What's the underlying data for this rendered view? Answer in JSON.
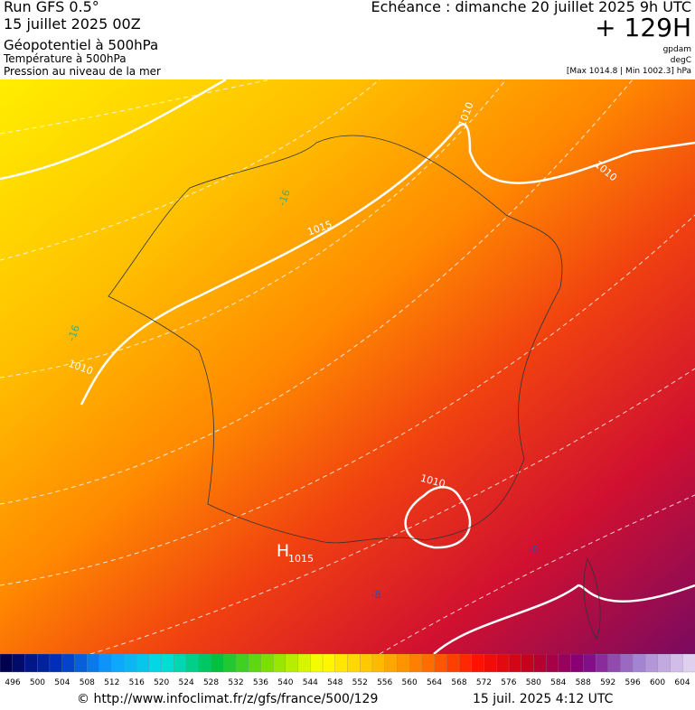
{
  "header": {
    "run": "Run GFS 0.5°",
    "date": "15 juillet 2025 00Z",
    "layer1": "Géopotentiel à 500hPa",
    "layer2": "Température à 500hPa",
    "layer3": "Pression au niveau de la mer",
    "valid": "Echéance : dimanche 20 juillet 2025 9h UTC",
    "lead": "+ 129H",
    "unit1": "gpdam",
    "unit2": "degC",
    "pressure_range": "[Max 1014.8 | Min 1002.3] hPa"
  },
  "map": {
    "labels": [
      "1010",
      "1010",
      "1015",
      "-16",
      "-16",
      "1010",
      "H",
      "1015",
      "1010",
      "-8",
      "-8"
    ]
  },
  "colorbar": {
    "ticks": [
      496,
      500,
      504,
      508,
      512,
      516,
      520,
      524,
      528,
      532,
      536,
      540,
      544,
      548,
      552,
      556,
      560,
      564,
      568,
      572,
      576,
      580,
      584,
      588,
      592,
      596,
      600,
      604
    ]
  },
  "footer": {
    "source": "© http://www.infoclimat.fr/z/gfs/france/500/129",
    "generated": "15 juil. 2025  4:12 UTC"
  }
}
